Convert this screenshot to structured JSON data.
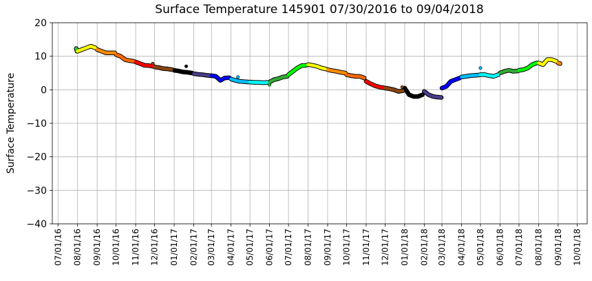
{
  "chart_data": {
    "type": "line",
    "title": "Surface Temperature 145901  07/30/2016 to 09/04/2018",
    "y_label": "Surface Temperature",
    "grid": true,
    "xlim": [
      "06/22/16",
      "10/17/18"
    ],
    "xticks": [
      "07/01/16",
      "08/01/16",
      "09/01/16",
      "10/01/16",
      "11/01/16",
      "12/01/16",
      "01/01/17",
      "02/01/17",
      "03/01/17",
      "04/01/17",
      "05/01/17",
      "06/01/17",
      "07/01/17",
      "08/01/17",
      "09/01/17",
      "10/01/17",
      "11/01/17",
      "12/01/17",
      "01/01/18",
      "02/01/18",
      "03/01/18",
      "04/01/18",
      "05/01/18",
      "06/01/18",
      "07/01/18",
      "08/01/18",
      "09/01/18",
      "10/01/18"
    ],
    "ylim": [
      -40,
      20
    ],
    "yticks": [
      {
        "value": -40,
        "label": "−40"
      },
      {
        "value": -30,
        "label": "−30"
      },
      {
        "value": -20,
        "label": "−20"
      },
      {
        "value": -10,
        "label": "−10"
      },
      0,
      10,
      20
    ],
    "series": [
      {
        "color": "#22cc22",
        "x": [
          "07/30/16",
          "07/31/16"
        ],
        "values": [
          12.3,
          11.5
        ]
      },
      {
        "color": "#ffff00",
        "x": [
          "08/01/16",
          "08/08/16",
          "08/15/16",
          "08/22/16",
          "08/29/16"
        ],
        "values": [
          11.5,
          12.0,
          12.5,
          13.0,
          12.5
        ]
      },
      {
        "color": "#ff8c00",
        "x": [
          "09/01/16",
          "09/08/16",
          "09/15/16",
          "09/22/16",
          "09/29/16"
        ],
        "values": [
          12.0,
          11.5,
          11.0,
          11.0,
          11.0
        ]
      },
      {
        "color": "#ff6a00",
        "x": [
          "10/01/16",
          "10/08/16",
          "10/15/16",
          "10/22/16",
          "10/29/16"
        ],
        "values": [
          10.5,
          10.0,
          9.0,
          8.7,
          8.5
        ]
      },
      {
        "color": "#ff0000",
        "x": [
          "11/01/16",
          "11/08/16",
          "11/15/16",
          "11/22/16",
          "11/29/16"
        ],
        "values": [
          8.3,
          7.8,
          7.3,
          7.2,
          7.0
        ]
      },
      {
        "color": "#8b4513",
        "x": [
          "12/01/16",
          "12/08/16",
          "12/15/16",
          "12/22/16",
          "12/29/16"
        ],
        "values": [
          6.8,
          6.6,
          6.3,
          6.2,
          6.0
        ]
      },
      {
        "color": "#000000",
        "x": [
          "01/01/17",
          "01/08/17",
          "01/15/17",
          "01/22/17",
          "01/29/17"
        ],
        "values": [
          5.8,
          5.6,
          5.3,
          5.2,
          5.0
        ]
      },
      {
        "color": "#483d8b",
        "x": [
          "02/01/17",
          "02/08/17",
          "02/15/17",
          "02/22/17",
          "02/28/17"
        ],
        "values": [
          4.8,
          4.6,
          4.5,
          4.3,
          4.2
        ]
      },
      {
        "color": "#0000ff",
        "x": [
          "03/01/17",
          "03/08/17",
          "03/15/17",
          "03/22/17",
          "03/29/17"
        ],
        "values": [
          4.2,
          4.0,
          2.8,
          3.5,
          3.6
        ]
      },
      {
        "color": "#00bfff",
        "x": [
          "04/01/17",
          "04/08/17",
          "04/15/17",
          "04/22/17",
          "04/29/17"
        ],
        "values": [
          3.2,
          2.8,
          2.5,
          2.4,
          2.3
        ]
      },
      {
        "color": "#00ffff",
        "x": [
          "05/01/17",
          "05/08/17",
          "05/15/17",
          "05/22/17",
          "05/29/17"
        ],
        "values": [
          2.3,
          2.2,
          2.2,
          2.1,
          2.2
        ]
      },
      {
        "color": "#33aa33",
        "x": [
          "06/01/17",
          "06/08/17",
          "06/15/17",
          "06/22/17",
          "06/29/17"
        ],
        "values": [
          2.3,
          3.0,
          3.3,
          3.8,
          4.0
        ]
      },
      {
        "color": "#00ff00",
        "x": [
          "07/01/17",
          "07/08/17",
          "07/15/17",
          "07/22/17",
          "07/29/17"
        ],
        "values": [
          4.5,
          5.5,
          6.5,
          7.2,
          7.3
        ]
      },
      {
        "color": "#ffff00",
        "x": [
          "08/01/17",
          "08/08/17",
          "08/15/17",
          "08/22/17",
          "08/29/17"
        ],
        "values": [
          7.5,
          7.3,
          7.0,
          6.5,
          6.2
        ]
      },
      {
        "color": "#ff8c00",
        "x": [
          "09/01/17",
          "09/08/17",
          "09/15/17",
          "09/22/17",
          "09/29/17"
        ],
        "values": [
          6.0,
          5.7,
          5.5,
          5.2,
          5.0
        ]
      },
      {
        "color": "#ff6a00",
        "x": [
          "10/01/17",
          "10/08/17",
          "10/15/17",
          "10/22/17",
          "10/29/17"
        ],
        "values": [
          4.5,
          4.2,
          4.0,
          4.0,
          3.5
        ]
      },
      {
        "color": "#ff0000",
        "x": [
          "11/01/17",
          "11/08/17",
          "11/15/17",
          "11/22/17",
          "11/29/17"
        ],
        "values": [
          2.5,
          1.8,
          1.2,
          0.8,
          0.6
        ]
      },
      {
        "color": "#8b4513",
        "x": [
          "12/01/17",
          "12/08/17",
          "12/15/17",
          "12/22/17",
          "12/29/17"
        ],
        "values": [
          0.5,
          0.3,
          0.0,
          -0.5,
          -0.3
        ]
      },
      {
        "color": "#000000",
        "x": [
          "01/01/18",
          "01/08/18",
          "01/15/18",
          "01/22/18",
          "01/29/18"
        ],
        "values": [
          0.5,
          -1.5,
          -2.0,
          -2.0,
          -1.5
        ]
      },
      {
        "color": "#483d8b",
        "x": [
          "02/01/18",
          "02/08/18",
          "02/15/18",
          "02/22/18",
          "02/28/18"
        ],
        "values": [
          -0.5,
          -1.5,
          -2.0,
          -2.2,
          -2.3
        ]
      },
      {
        "color": "#0000ff",
        "x": [
          "03/01/18",
          "03/08/18",
          "03/15/18",
          "03/22/18",
          "03/29/18"
        ],
        "values": [
          0.5,
          1.0,
          2.5,
          3.0,
          3.5
        ]
      },
      {
        "color": "#00bfff",
        "x": [
          "04/01/18",
          "04/08/18",
          "04/15/18",
          "04/22/18",
          "04/29/18"
        ],
        "values": [
          3.8,
          4.0,
          4.2,
          4.3,
          4.4
        ]
      },
      {
        "color": "#00ffff",
        "x": [
          "05/01/18",
          "05/08/18",
          "05/15/18",
          "05/22/18",
          "05/29/18"
        ],
        "values": [
          4.5,
          4.5,
          4.2,
          4.0,
          4.5
        ]
      },
      {
        "color": "#33aa33",
        "x": [
          "06/01/18",
          "06/08/18",
          "06/15/18",
          "06/22/18",
          "06/29/18"
        ],
        "values": [
          5.0,
          5.5,
          5.8,
          5.5,
          5.6
        ]
      },
      {
        "color": "#00ff00",
        "x": [
          "07/01/18",
          "07/08/18",
          "07/15/18",
          "07/22/18",
          "07/29/18"
        ],
        "values": [
          5.8,
          6.0,
          6.5,
          7.5,
          8.0
        ]
      },
      {
        "color": "#ffff00",
        "x": [
          "08/01/18",
          "08/08/18",
          "08/15/18",
          "08/22/18",
          "08/29/18"
        ],
        "values": [
          8.0,
          7.5,
          9.0,
          9.0,
          8.5
        ]
      },
      {
        "color": "#ff8c00",
        "x": [
          "09/01/18",
          "09/04/18"
        ],
        "values": [
          8.0,
          7.8
        ]
      },
      {
        "color": "#8b4513",
        "x": [
          "11/28/16"
        ],
        "values": [
          7.8
        ]
      },
      {
        "color": "#000000",
        "x": [
          "01/20/17"
        ],
        "values": [
          7.0
        ]
      },
      {
        "color": "#00bfff",
        "x": [
          "04/12/17"
        ],
        "values": [
          3.8
        ]
      },
      {
        "color": "#33aa33",
        "x": [
          "06/01/17"
        ],
        "values": [
          1.5
        ]
      },
      {
        "color": "#8b4513",
        "x": [
          "12/28/17"
        ],
        "values": [
          0.8
        ]
      },
      {
        "color": "#00bfff",
        "x": [
          "05/01/18"
        ],
        "values": [
          6.5
        ]
      }
    ]
  }
}
